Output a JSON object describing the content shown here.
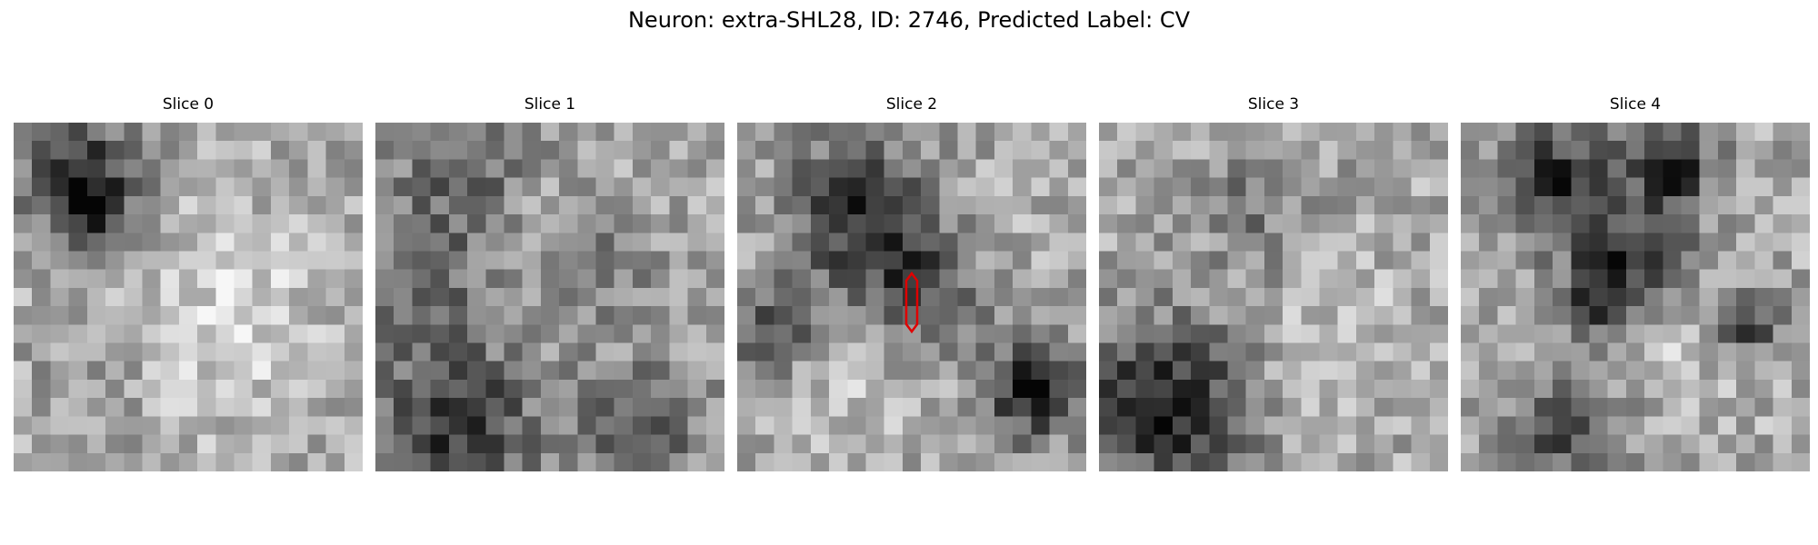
{
  "figure": {
    "title": "Neuron: extra-SHL28, ID: 2746, Predicted Label: CV"
  },
  "panels": [
    {
      "title": "Slice 0",
      "seed": 11,
      "blobs": [
        [
          3.2,
          2.6,
          2.2,
          -0.5
        ],
        [
          11,
          10,
          4,
          0.18
        ],
        [
          3.5,
          4.2,
          1.2,
          -0.35
        ],
        [
          4,
          13,
          2,
          -0.12
        ]
      ]
    },
    {
      "title": "Slice 1",
      "seed": 23,
      "blobs": [
        [
          5,
          2,
          3,
          -0.3
        ],
        [
          12,
          7.5,
          2,
          -0.22
        ],
        [
          2,
          8,
          3,
          -0.25
        ],
        [
          4,
          16,
          3,
          -0.45
        ],
        [
          14,
          16,
          2.5,
          -0.3
        ],
        [
          7,
          5,
          3,
          0.12
        ]
      ]
    },
    {
      "title": "Slice 2",
      "seed": 37,
      "blobs": [
        [
          6.5,
          4.5,
          3,
          -0.48
        ],
        [
          9.5,
          9,
          2.6,
          -0.4
        ],
        [
          15.5,
          14.2,
          1.8,
          -0.55
        ],
        [
          1.2,
          11,
          1.6,
          -0.42
        ],
        [
          7,
          12,
          3,
          0.14
        ],
        [
          11,
          6,
          3,
          0.1
        ]
      ]
    },
    {
      "title": "Slice 3",
      "seed": 51,
      "blobs": [
        [
          3,
          15,
          3.2,
          -0.55
        ],
        [
          8,
          4,
          2.5,
          -0.18
        ],
        [
          13,
          11,
          3,
          0.1
        ]
      ]
    },
    {
      "title": "Slice 4",
      "seed": 67,
      "blobs": [
        [
          4.8,
          2.8,
          2.2,
          -0.5
        ],
        [
          11,
          1.8,
          1.6,
          -0.48
        ],
        [
          10,
          6,
          2,
          -0.3
        ],
        [
          7.3,
          8.6,
          1.6,
          -0.55
        ],
        [
          15.2,
          10.5,
          1.3,
          -0.45
        ],
        [
          5.5,
          16,
          2.2,
          -0.4
        ],
        [
          11,
          13,
          3,
          0.1
        ]
      ]
    }
  ],
  "marker": {
    "color": "#e00000",
    "slice_index": 2
  }
}
